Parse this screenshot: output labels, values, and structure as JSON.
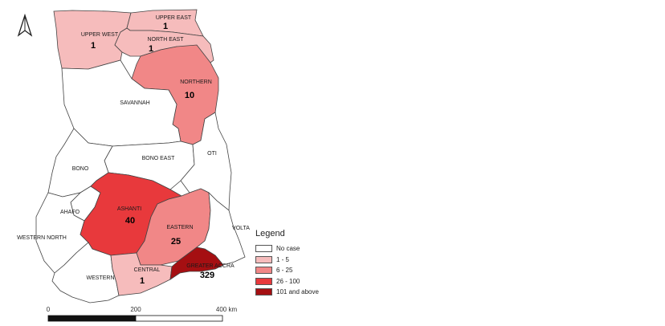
{
  "map": {
    "regions": [
      {
        "key": "upper_west",
        "name": "UPPER WEST",
        "count": "1",
        "color": "#f6bcbc"
      },
      {
        "key": "upper_east",
        "name": "UPPER EAST",
        "count": "1",
        "color": "#f6bcbc"
      },
      {
        "key": "north_east",
        "name": "NORTH EAST",
        "count": "1",
        "color": "#f6bcbc"
      },
      {
        "key": "northern",
        "name": "NORTHERN",
        "count": "10",
        "color": "#f18787"
      },
      {
        "key": "savannah",
        "name": "SAVANNAH",
        "count": "",
        "color": "#ffffff"
      },
      {
        "key": "bono_east",
        "name": "BONO EAST",
        "count": "",
        "color": "#ffffff"
      },
      {
        "key": "oti",
        "name": "OTI",
        "count": "",
        "color": "#ffffff"
      },
      {
        "key": "bono",
        "name": "BONO",
        "count": "",
        "color": "#ffffff"
      },
      {
        "key": "ahafo",
        "name": "AHAFO",
        "count": "",
        "color": "#ffffff"
      },
      {
        "key": "western_north",
        "name": "WESTERN NORTH",
        "count": "",
        "color": "#ffffff"
      },
      {
        "key": "ashanti",
        "name": "ASHANTI",
        "count": "40",
        "color": "#e8393c"
      },
      {
        "key": "eastern",
        "name": "EASTERN",
        "count": "25",
        "color": "#f18787"
      },
      {
        "key": "volta",
        "name": "VOLTA",
        "count": "",
        "color": "#ffffff"
      },
      {
        "key": "western",
        "name": "WESTERN",
        "count": "",
        "color": "#ffffff"
      },
      {
        "key": "central",
        "name": "CENTRAL",
        "count": "1",
        "color": "#f6bcbc"
      },
      {
        "key": "greater_accra",
        "name": "GREATER ACCRA",
        "count": "329",
        "color": "#a50f12"
      }
    ]
  },
  "legend": {
    "title": "Legend",
    "items": [
      {
        "label": "No case",
        "color": "#ffffff"
      },
      {
        "label": "1 - 5",
        "color": "#f6bcbc"
      },
      {
        "label": "6 - 25",
        "color": "#f18787"
      },
      {
        "label": "26 - 100",
        "color": "#e8393c"
      },
      {
        "label": "101 and above",
        "color": "#a50f12"
      }
    ]
  },
  "scale_bar": {
    "labels": [
      "0",
      "200",
      "400 km"
    ]
  }
}
